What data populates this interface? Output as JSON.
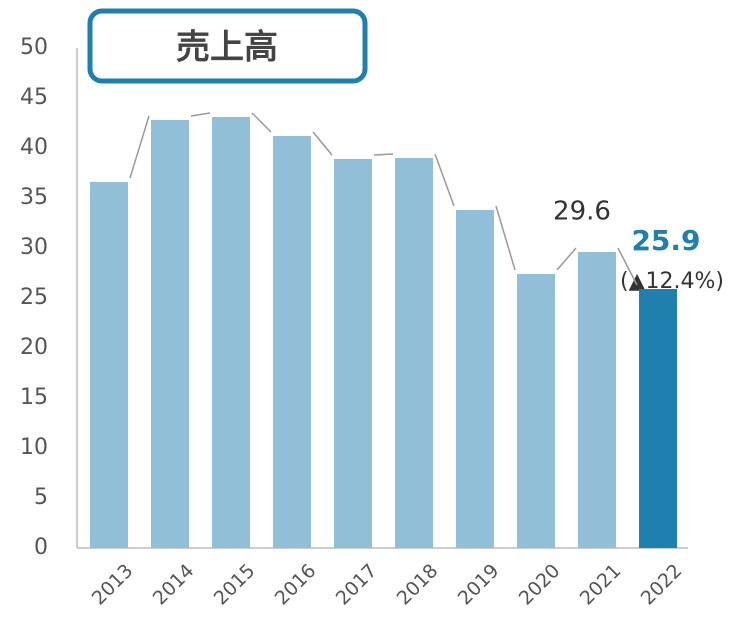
{
  "chart_data": {
    "type": "bar",
    "title": "売上高",
    "categories": [
      "2013",
      "2014",
      "2015",
      "2016",
      "2017",
      "2018",
      "2019",
      "2020",
      "2021",
      "2022"
    ],
    "values": [
      36.6,
      42.8,
      43.1,
      41.2,
      38.9,
      39.0,
      33.8,
      27.4,
      29.6,
      25.9
    ],
    "value_labels": [
      null,
      null,
      null,
      null,
      null,
      null,
      null,
      null,
      "29.6",
      "25.9"
    ],
    "colors": [
      "#92bfd8",
      "#92bfd8",
      "#92bfd8",
      "#92bfd8",
      "#92bfd8",
      "#92bfd8",
      "#92bfd8",
      "#92bfd8",
      "#92bfd8",
      "#1f7fae"
    ],
    "value_label_colors": [
      null,
      null,
      null,
      null,
      null,
      null,
      null,
      null,
      "#333333",
      "#1f7fae"
    ],
    "annotation": "(▲12.4%)",
    "ylim": [
      0,
      50
    ],
    "yticks": [
      0,
      5,
      10,
      15,
      20,
      25,
      30,
      35,
      40,
      45,
      50
    ]
  }
}
